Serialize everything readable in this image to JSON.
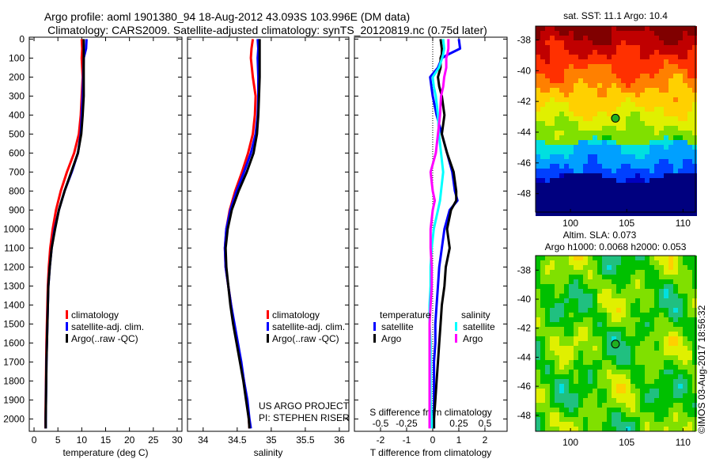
{
  "title": {
    "line1": "Argo profile: aoml 1901380_94 18-Aug-2012 43.093S 103.996E (DM data)",
    "line2": "Climatology: CARS2009. Satellite-adjusted climatology: synTS_20120819.nc (0.75d later)"
  },
  "credits": {
    "project": "US ARGO PROJECT",
    "pi": "PI: STEPHEN RISER",
    "stamp": "©IMOS 03-Aug-2017 18:56:32"
  },
  "colors": {
    "climatology": "#ff0000",
    "satellite": "#0000ff",
    "argo": "#000000",
    "sal_satellite": "#00ffff",
    "sal_argo": "#ff00ff"
  },
  "chart_data": [
    {
      "type": "line",
      "name": "temperature-profile",
      "xlabel": "temperature (deg C)",
      "xlim": [
        -1,
        31
      ],
      "ylim": [
        2065,
        -10
      ],
      "xticks": [
        "0",
        "5",
        "10",
        "15",
        "20",
        "25",
        "30"
      ],
      "yticks": [
        "0",
        "100",
        "200",
        "300",
        "400",
        "500",
        "600",
        "700",
        "800",
        "900",
        "1000",
        "1100",
        "1200",
        "1300",
        "1400",
        "1500",
        "1600",
        "1700",
        "1800",
        "1900",
        "2000"
      ],
      "depth": [
        0,
        50,
        100,
        200,
        300,
        400,
        500,
        600,
        700,
        800,
        900,
        1000,
        1100,
        1200,
        1300,
        1400,
        1500,
        1600,
        1700,
        1800,
        1900,
        2000,
        2050
      ],
      "legend": [
        "climatology",
        "satellite-adj. clim.",
        "Argo(..raw -QC)"
      ],
      "series": [
        {
          "name": "climatology",
          "color": "#ff0000",
          "values": [
            10.0,
            10.1,
            10.0,
            10.2,
            10.0,
            9.8,
            9.4,
            8.4,
            6.9,
            5.6,
            4.6,
            3.9,
            3.4,
            3.1,
            2.9,
            2.8,
            2.7,
            2.6,
            2.55,
            2.5,
            2.45,
            2.4,
            2.4
          ]
        },
        {
          "name": "satellite-adj. clim.",
          "color": "#0000ff",
          "values": [
            11.0,
            10.9,
            10.4,
            10.3,
            10.2,
            10.0,
            9.8,
            9.2,
            7.9,
            6.4,
            5.2,
            4.3,
            3.7,
            3.3,
            3.0,
            2.9,
            2.8,
            2.7,
            2.6,
            2.55,
            2.5,
            2.45,
            2.45
          ]
        },
        {
          "name": "Argo(..raw -QC)",
          "color": "#000000",
          "values": [
            10.4,
            10.4,
            10.4,
            10.4,
            10.4,
            10.2,
            9.9,
            9.2,
            7.8,
            6.4,
            5.2,
            4.4,
            3.7,
            3.3,
            3.0,
            2.9,
            2.8,
            2.7,
            2.6,
            2.55,
            2.5,
            2.45,
            2.45
          ]
        }
      ]
    },
    {
      "type": "line",
      "name": "salinity-profile",
      "xlabel": "salinity",
      "xlim": [
        33.77,
        36.14
      ],
      "ylim": [
        2065,
        -10
      ],
      "xticks": [
        "34",
        "34.5",
        "35",
        "35.5",
        "36"
      ],
      "depth": [
        0,
        50,
        100,
        200,
        300,
        400,
        500,
        600,
        700,
        800,
        900,
        1000,
        1100,
        1200,
        1300,
        1400,
        1500,
        1600,
        1700,
        1800,
        1900,
        2000,
        2050
      ],
      "legend": [
        "climatology",
        "satellite-adj. clim.",
        "Argo(..raw -QC)"
      ],
      "series": [
        {
          "name": "climatology",
          "color": "#ff0000",
          "values": [
            34.73,
            34.71,
            34.7,
            34.73,
            34.77,
            34.76,
            34.73,
            34.66,
            34.57,
            34.47,
            34.39,
            34.34,
            34.32,
            34.33,
            34.37,
            34.41,
            34.45,
            34.5,
            34.55,
            34.6,
            34.64,
            34.67,
            34.68
          ]
        },
        {
          "name": "satellite-adj. clim.",
          "color": "#0000ff",
          "values": [
            34.8,
            34.81,
            34.8,
            34.81,
            34.81,
            34.8,
            34.77,
            34.7,
            34.6,
            34.49,
            34.4,
            34.34,
            34.32,
            34.33,
            34.37,
            34.41,
            34.46,
            34.51,
            34.56,
            34.6,
            34.65,
            34.68,
            34.7
          ]
        },
        {
          "name": "Argo(..raw -QC)",
          "color": "#000000",
          "values": [
            34.83,
            34.83,
            34.83,
            34.83,
            34.82,
            34.81,
            34.79,
            34.74,
            34.64,
            34.52,
            34.42,
            34.36,
            34.33,
            34.34,
            34.37,
            34.4,
            34.44,
            34.49,
            34.54,
            34.59,
            34.63,
            34.67,
            34.68
          ]
        }
      ]
    },
    {
      "type": "line",
      "name": "difference-profile",
      "xlabel": "T difference from climatology",
      "xlabel_top": "S difference from climatology",
      "xlim": [
        -3.0,
        2.85
      ],
      "ylim": [
        2065,
        -10
      ],
      "xticks": [
        "-2",
        "-1",
        "0",
        "1",
        "2"
      ],
      "xticks_top": [
        "-0.5",
        "-0.25",
        "0",
        "0.25",
        "0.5"
      ],
      "legend_titles": [
        "temperature",
        "salinity"
      ],
      "legend": [
        "satellite",
        "Argo",
        "satellite",
        "Argo"
      ],
      "depth": [
        0,
        50,
        80,
        100,
        150,
        200,
        250,
        300,
        400,
        500,
        600,
        700,
        800,
        850,
        900,
        1000,
        1100,
        1200,
        1300,
        1400,
        1500,
        1600,
        1700,
        1800,
        1900,
        2000,
        2050
      ],
      "series": [
        {
          "name": "temperature satellite",
          "group": "temperature",
          "color": "#0000ff",
          "values": [
            1.0,
            1.05,
            0.6,
            0.35,
            0.2,
            -0.1,
            -0.05,
            0.0,
            0.15,
            0.35,
            0.55,
            0.75,
            0.85,
            0.95,
            0.65,
            0.45,
            0.35,
            0.25,
            0.2,
            0.15,
            0.1,
            0.1,
            0.05,
            0.05,
            0.05,
            0.05,
            0.05
          ]
        },
        {
          "name": "temperature Argo",
          "group": "temperature",
          "color": "#000000",
          "values": [
            0.3,
            0.35,
            0.35,
            0.3,
            0.3,
            0.2,
            0.25,
            0.35,
            0.45,
            0.35,
            0.55,
            0.8,
            0.9,
            0.9,
            0.7,
            0.55,
            0.65,
            0.5,
            0.45,
            0.35,
            0.3,
            0.25,
            0.2,
            0.15,
            0.1,
            0.05,
            0.05
          ]
        },
        {
          "name": "salinity satellite",
          "group": "salinity",
          "color": "#00ffff",
          "values": [
            0.1,
            0.11,
            0.1,
            0.09,
            0.06,
            0.0,
            0.01,
            0.03,
            0.05,
            0.06,
            0.08,
            0.1,
            0.08,
            0.07,
            0.05,
            0.01,
            -0.01,
            -0.02,
            -0.02,
            -0.03,
            -0.03,
            -0.02,
            -0.02,
            -0.02,
            -0.02,
            -0.01,
            -0.01
          ]
        },
        {
          "name": "salinity Argo",
          "group": "salinity",
          "color": "#ff00ff",
          "values": [
            0.15,
            0.15,
            0.14,
            0.13,
            0.13,
            0.11,
            0.1,
            0.08,
            0.07,
            0.05,
            0.03,
            -0.02,
            0.0,
            0.02,
            0.0,
            -0.02,
            -0.02,
            -0.01,
            -0.01,
            -0.02,
            -0.03,
            -0.03,
            -0.03,
            -0.03,
            -0.03,
            -0.03,
            -0.03
          ]
        }
      ]
    },
    {
      "type": "heatmap",
      "name": "sst-map",
      "title": "sat. SST: 11.1  Argo: 10.4",
      "xlim": [
        96.9,
        111.1
      ],
      "ylim": [
        -37.1,
        -49.2
      ],
      "xticks": [
        "100",
        "105",
        "110"
      ],
      "yticks": [
        "-38",
        "-40",
        "-42",
        "-44",
        "-46",
        "-48"
      ],
      "marker": {
        "lon": 103.996,
        "lat": -43.093
      }
    },
    {
      "type": "heatmap",
      "name": "sla-map",
      "title": "Altim. SLA: 0.073",
      "subtitle": "Argo h1000: 0.0068  h2000: 0.053",
      "xlim": [
        96.9,
        111.1
      ],
      "ylim": [
        -37.0,
        -49.1
      ],
      "xticks": [
        "100",
        "105",
        "110"
      ],
      "yticks": [
        "-38",
        "-40",
        "-42",
        "-44",
        "-46",
        "-48"
      ],
      "marker": {
        "lon": 103.996,
        "lat": -43.093
      }
    }
  ]
}
